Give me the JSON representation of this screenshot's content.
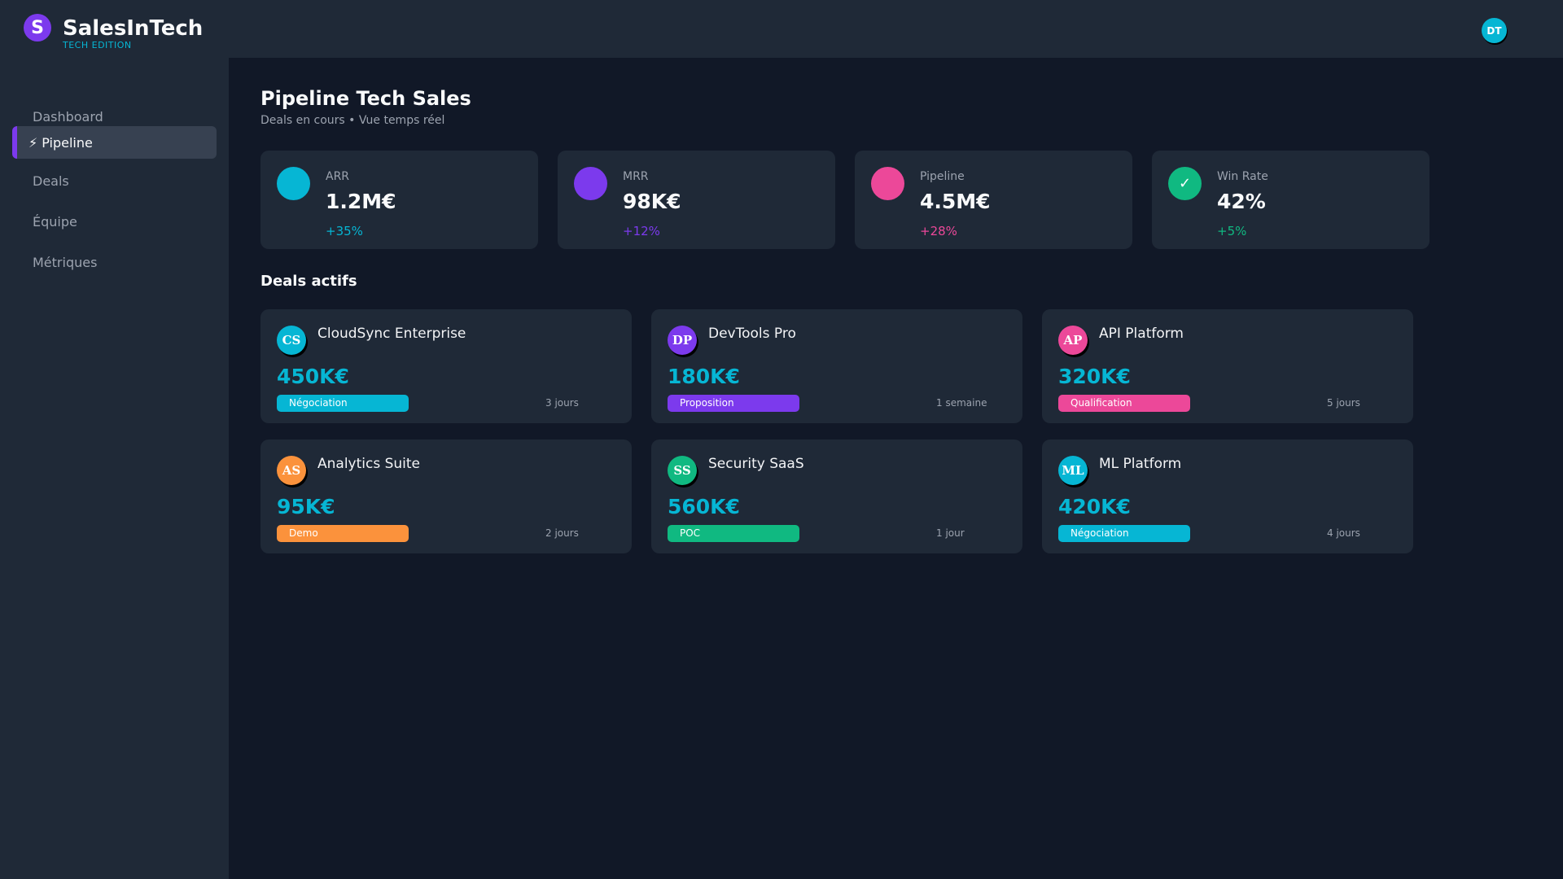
{
  "app": {
    "logo_letter": "S",
    "name": "SalesInTech",
    "edition": "TECH EDITION"
  },
  "user": {
    "initials": "DT"
  },
  "sidebar": {
    "items": [
      {
        "icon": "",
        "label": "Dashboard"
      },
      {
        "icon": "⚡",
        "label": "Pipeline"
      },
      {
        "icon": "",
        "label": "Deals"
      },
      {
        "icon": "",
        "label": "Équipe"
      },
      {
        "icon": "",
        "label": "Métriques"
      }
    ]
  },
  "page": {
    "title": "Pipeline Tech Sales",
    "subtitle": "Deals en cours • Vue temps réel"
  },
  "kpis": [
    {
      "icon": "",
      "icon_name": "chart-icon",
      "label": "ARR",
      "value": "1.2M€",
      "change": "+35%",
      "color": "#06b6d4"
    },
    {
      "icon": "",
      "icon_name": "money-icon",
      "label": "MRR",
      "value": "98K€",
      "change": "+12%",
      "color": "#7c3aed"
    },
    {
      "icon": "",
      "icon_name": "pipeline-icon",
      "label": "Pipeline",
      "value": "4.5M€",
      "change": "+28%",
      "color": "#ec4899"
    },
    {
      "icon": "✓",
      "icon_name": "check-icon",
      "label": "Win Rate",
      "value": "42%",
      "change": "+5%",
      "color": "#10b981"
    }
  ],
  "deals_section": {
    "title": "Deals actifs"
  },
  "deals": [
    {
      "initials": "CS",
      "name": "CloudSync Enterprise",
      "amount": "450K€",
      "stage": "Négociation",
      "time": " 3 jours",
      "color": "#06b6d4"
    },
    {
      "initials": "DP",
      "name": "DevTools Pro",
      "amount": "180K€",
      "stage": "Proposition",
      "time": " 1 semaine",
      "color": "#7c3aed"
    },
    {
      "initials": "AP",
      "name": "API Platform",
      "amount": "320K€",
      "stage": "Qualification",
      "time": " 5 jours",
      "color": "#ec4899"
    },
    {
      "initials": "AS",
      "name": "Analytics Suite",
      "amount": "95K€",
      "stage": "Demo",
      "time": " 2 jours",
      "color": "#fb923c"
    },
    {
      "initials": "SS",
      "name": "Security SaaS",
      "amount": "560K€",
      "stage": "POC",
      "time": " 1 jour",
      "color": "#10b981"
    },
    {
      "initials": "ML",
      "name": "ML Platform",
      "amount": "420K€",
      "stage": "Négociation",
      "time": " 4 jours",
      "color": "#06b6d4"
    }
  ]
}
